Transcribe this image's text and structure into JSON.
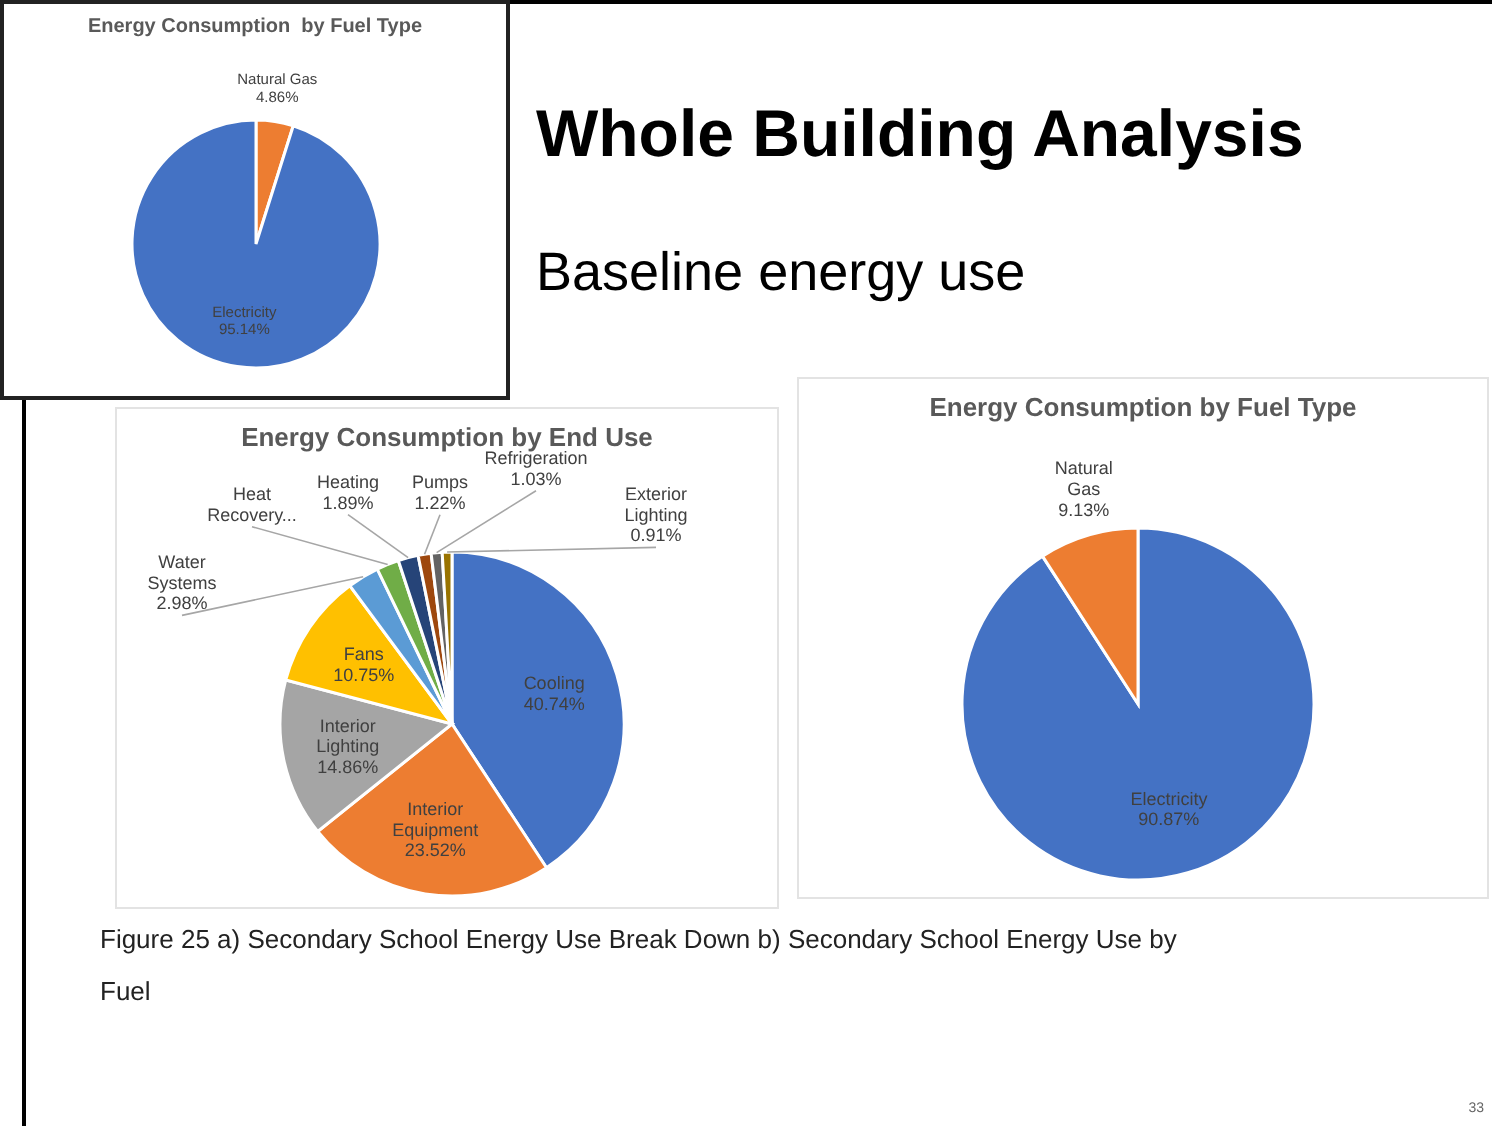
{
  "chart_data": [
    {
      "type": "other",
      "title": "Whole Building Analysis",
      "subtitle": "Baseline energy use",
      "annotations": [
        "Figure 25 a) Secondary School Energy Use Break Down b) Secondary School Energy Use by Fuel",
        "33"
      ]
    },
    {
      "type": "pie",
      "title": "Energy Consumption  by Fuel Type",
      "categories": [
        "Natural Gas",
        "Electricity"
      ],
      "values": [
        4.86,
        95.14
      ],
      "colors": [
        "#ed7d31",
        "#4472c4"
      ],
      "value_labels": [
        "4.86%",
        "95.14%"
      ]
    },
    {
      "type": "pie",
      "title": "Energy Consumption by End Use",
      "categories": [
        "Cooling",
        "Interior Equipment",
        "Interior Lighting",
        "Fans",
        "Water Systems",
        "Heat Recovery...",
        "Heating",
        "Pumps",
        "Refrigeration",
        "Exterior Lighting"
      ],
      "values": [
        40.74,
        23.52,
        14.86,
        10.75,
        2.98,
        2.1,
        1.89,
        1.22,
        1.03,
        0.91
      ],
      "colors": [
        "#4472c4",
        "#ed7d31",
        "#a5a5a5",
        "#ffc000",
        "#5b9bd5",
        "#70ad47",
        "#264478",
        "#9e480e",
        "#636363",
        "#997300"
      ],
      "value_labels": [
        "40.74%",
        "23.52%",
        "14.86%",
        "10.75%",
        "2.98%",
        null,
        "1.89%",
        "1.22%",
        "1.03%",
        "0.91%"
      ]
    },
    {
      "type": "pie",
      "title": "Energy Consumption by Fuel Type",
      "categories": [
        "Electricity",
        "Natural Gas"
      ],
      "values": [
        90.87,
        9.13
      ],
      "colors": [
        "#4472c4",
        "#ed7d31"
      ],
      "value_labels": [
        "90.87%",
        "9.13%"
      ]
    }
  ]
}
